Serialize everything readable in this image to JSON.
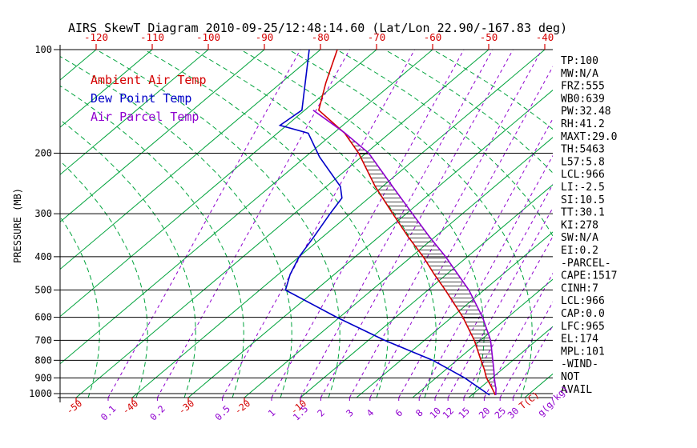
{
  "title": "AIRS SkewT Diagram 2010-09-25/12:48:14.60 (Lat/Lon 22.90/-167.83 deg)",
  "legend": {
    "ambient": "Ambient Air Temp",
    "dew": "Dew Point Temp",
    "parcel": "Air Parcel Temp"
  },
  "colors": {
    "ambient": "#d40000",
    "dew": "#0000c8",
    "parcel": "#8f00cf",
    "isotherm_green": "#00a33c",
    "mixing_purple": "#8f00cf",
    "isobar_black": "#000000",
    "temp_label_red": "#d40000",
    "hatch": "#1a1a1a"
  },
  "axes": {
    "pressure_label": "PRESSURE (MB)",
    "pressure_ticks": [
      100,
      200,
      300,
      400,
      500,
      600,
      700,
      800,
      900,
      1000
    ],
    "top_temp_ticks": [
      -120,
      -110,
      -100,
      -90,
      -80,
      -70,
      -60,
      -50,
      -40
    ],
    "bottom_temp_ticks": [
      -50,
      -40,
      -30,
      -20,
      -10
    ],
    "bottom_temp_unit": "T(C)",
    "mixing_ratio_ticks": [
      0.1,
      0.2,
      0.5,
      1,
      1.5,
      2,
      3,
      4,
      6,
      8,
      10,
      12,
      15,
      20,
      25,
      30
    ],
    "mixing_ratio_unit": "g(g/kg)"
  },
  "stats": {
    "lines": [
      "TP:100",
      "MW:N/A",
      "FRZ:555",
      "WB0:639",
      "PW:32.48",
      "RH:41.2",
      "MAXT:29.0",
      "TH:5463",
      "L57:5.8",
      "LCL:966",
      "LI:-2.5",
      "SI:10.5",
      "TT:30.1",
      "KI:278",
      "SW:N/A",
      "EI:0.2",
      "-PARCEL-",
      "CAPE:1517",
      "CINH:7",
      "LCL:966",
      "CAP:0.0",
      "LFC:965",
      "EL:174",
      "MPL:101",
      "-WIND-",
      "NOT",
      "AVAIL"
    ]
  },
  "chart_data": {
    "type": "line",
    "title": "AIRS SkewT Diagram 2010-09-25/12:48:14.60 (Lat/Lon 22.90/-167.83 deg)",
    "xlabel": "T(C)",
    "ylabel": "PRESSURE (MB)",
    "y_scale": "log",
    "ylim": [
      100,
      1010
    ],
    "x_top_ticks": [
      -120,
      -110,
      -100,
      -90,
      -80,
      -70,
      -60,
      -50,
      -40
    ],
    "x_bottom_ticks": [
      -50,
      -40,
      -30,
      -20,
      -10
    ],
    "grid": "skew-t (isotherms, moist adiabats, mixing-ratio lines, isobars)",
    "legend_position": "upper-left inside plot",
    "series": [
      {
        "name": "Ambient Air Temp",
        "color_key": "ambient",
        "points_p_t": [
          [
            100,
            -77
          ],
          [
            125,
            -72
          ],
          [
            150,
            -67.5
          ],
          [
            175,
            -58
          ],
          [
            200,
            -51.3
          ],
          [
            250,
            -41.3
          ],
          [
            300,
            -32.4
          ],
          [
            350,
            -24.8
          ],
          [
            400,
            -17.9
          ],
          [
            450,
            -12.2
          ],
          [
            500,
            -6.9
          ],
          [
            600,
            2.0
          ],
          [
            700,
            8.9
          ],
          [
            800,
            14.3
          ],
          [
            850,
            16.8
          ],
          [
            900,
            19.0
          ],
          [
            950,
            21.5
          ],
          [
            1000,
            23.8
          ],
          [
            1010,
            24.2
          ]
        ]
      },
      {
        "name": "Dew Point Temp",
        "color_key": "dew",
        "points_p_t": [
          [
            100,
            -82
          ],
          [
            150,
            -70.5
          ],
          [
            166,
            -71.2
          ],
          [
            175,
            -64.5
          ],
          [
            205,
            -57.5
          ],
          [
            250,
            -47.5
          ],
          [
            270,
            -44.8
          ],
          [
            300,
            -43.6
          ],
          [
            350,
            -41.6
          ],
          [
            400,
            -40.0
          ],
          [
            450,
            -37.9
          ],
          [
            500,
            -35.4
          ],
          [
            600,
            -20.5
          ],
          [
            700,
            -7.1
          ],
          [
            800,
            5.7
          ],
          [
            900,
            15.1
          ],
          [
            1000,
            22.5
          ],
          [
            1010,
            23.2
          ]
        ]
      },
      {
        "name": "Air Parcel Temp",
        "color_key": "parcel",
        "points_p_t": [
          [
            150,
            -68.5
          ],
          [
            174,
            -58.3
          ],
          [
            200,
            -49.5
          ],
          [
            250,
            -38.2
          ],
          [
            300,
            -28.9
          ],
          [
            350,
            -21.0
          ],
          [
            400,
            -13.9
          ],
          [
            450,
            -8.0
          ],
          [
            500,
            -2.7
          ],
          [
            600,
            5.5
          ],
          [
            700,
            11.8
          ],
          [
            800,
            16.4
          ],
          [
            850,
            18.5
          ],
          [
            900,
            20.4
          ],
          [
            950,
            22.3
          ],
          [
            965,
            22.9
          ],
          [
            1010,
            24.3
          ]
        ]
      }
    ],
    "hatch_between": [
      "Ambient Air Temp",
      "Air Parcel Temp"
    ],
    "hatch_pressure_range": [
      174,
      965
    ]
  }
}
